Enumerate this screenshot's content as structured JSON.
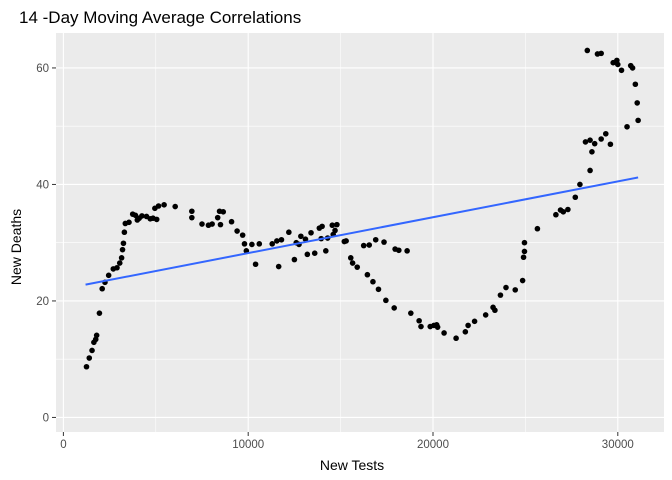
{
  "chart_data": {
    "type": "scatter",
    "title": "14 -Day Moving Average Correlations",
    "xlabel": "New Tests",
    "ylabel": "New Deaths",
    "xlim": [
      -400,
      32500
    ],
    "ylim": [
      -2.5,
      66
    ],
    "x_ticks": [
      0,
      10000,
      20000,
      30000
    ],
    "y_ticks": [
      0,
      20,
      40,
      60
    ],
    "x_tick_labels": [
      "0",
      "10000",
      "20000",
      "30000"
    ],
    "y_tick_labels": [
      "0",
      "20",
      "40",
      "60"
    ],
    "grid": true,
    "legend": "none",
    "colors": {
      "panel": "#ebebeb",
      "grid": "#ffffff",
      "points": "#000000",
      "trend": "#3366ff"
    },
    "trend_line": {
      "x": [
        1200,
        31100
      ],
      "y": [
        22.8,
        41.2
      ]
    },
    "points": [
      [
        1250,
        8.7
      ],
      [
        1400,
        10.2
      ],
      [
        1550,
        11.5
      ],
      [
        1650,
        12.9
      ],
      [
        1750,
        13.4
      ],
      [
        1800,
        14.1
      ],
      [
        1950,
        17.9
      ],
      [
        2100,
        22.1
      ],
      [
        2250,
        23.2
      ],
      [
        2450,
        24.4
      ],
      [
        2700,
        25.5
      ],
      [
        2900,
        25.7
      ],
      [
        3050,
        26.5
      ],
      [
        3150,
        27.4
      ],
      [
        3200,
        28.8
      ],
      [
        3250,
        29.9
      ],
      [
        3300,
        31.8
      ],
      [
        3350,
        33.3
      ],
      [
        3550,
        33.5
      ],
      [
        3750,
        34.9
      ],
      [
        3900,
        34.7
      ],
      [
        4000,
        33.9
      ],
      [
        4100,
        34.2
      ],
      [
        4250,
        34.6
      ],
      [
        4500,
        34.5
      ],
      [
        4700,
        34.1
      ],
      [
        4850,
        34.2
      ],
      [
        4950,
        35.9
      ],
      [
        5050,
        34.0
      ],
      [
        5150,
        36.3
      ],
      [
        5450,
        36.5
      ],
      [
        6050,
        36.2
      ],
      [
        6950,
        35.4
      ],
      [
        6950,
        34.3
      ],
      [
        7500,
        33.2
      ],
      [
        7850,
        33.0
      ],
      [
        8050,
        33.2
      ],
      [
        8350,
        34.3
      ],
      [
        8450,
        35.4
      ],
      [
        8500,
        33.1
      ],
      [
        8650,
        35.3
      ],
      [
        9100,
        33.6
      ],
      [
        9400,
        32.0
      ],
      [
        9700,
        31.3
      ],
      [
        9800,
        29.8
      ],
      [
        9900,
        28.6
      ],
      [
        10200,
        29.7
      ],
      [
        10400,
        26.3
      ],
      [
        10600,
        29.8
      ],
      [
        11300,
        29.8
      ],
      [
        11550,
        30.3
      ],
      [
        11650,
        25.9
      ],
      [
        11800,
        30.5
      ],
      [
        12200,
        31.8
      ],
      [
        12500,
        27.1
      ],
      [
        12600,
        30.0
      ],
      [
        12750,
        29.7
      ],
      [
        12850,
        31.1
      ],
      [
        13100,
        30.6
      ],
      [
        13200,
        28.0
      ],
      [
        13400,
        31.7
      ],
      [
        13600,
        28.2
      ],
      [
        13850,
        32.5
      ],
      [
        13950,
        30.7
      ],
      [
        14000,
        32.8
      ],
      [
        14200,
        28.6
      ],
      [
        14300,
        30.8
      ],
      [
        14550,
        33.0
      ],
      [
        14700,
        32.1
      ],
      [
        14800,
        33.1
      ],
      [
        14600,
        31.4
      ],
      [
        15200,
        30.2
      ],
      [
        15300,
        30.3
      ],
      [
        15550,
        27.4
      ],
      [
        15650,
        26.5
      ],
      [
        15900,
        25.8
      ],
      [
        16250,
        29.5
      ],
      [
        16450,
        24.5
      ],
      [
        16550,
        29.6
      ],
      [
        16750,
        23.3
      ],
      [
        16900,
        30.5
      ],
      [
        17050,
        22.0
      ],
      [
        17350,
        30.1
      ],
      [
        17450,
        20.1
      ],
      [
        17900,
        18.8
      ],
      [
        17950,
        28.9
      ],
      [
        18150,
        28.7
      ],
      [
        18600,
        28.6
      ],
      [
        18800,
        17.9
      ],
      [
        19250,
        16.6
      ],
      [
        19350,
        15.6
      ],
      [
        19850,
        15.6
      ],
      [
        20050,
        15.8
      ],
      [
        20200,
        15.9
      ],
      [
        20250,
        15.5
      ],
      [
        20600,
        14.5
      ],
      [
        21250,
        13.6
      ],
      [
        21750,
        14.7
      ],
      [
        21900,
        15.8
      ],
      [
        22250,
        16.5
      ],
      [
        22850,
        17.6
      ],
      [
        23250,
        18.9
      ],
      [
        23350,
        18.4
      ],
      [
        23650,
        21.0
      ],
      [
        23950,
        22.3
      ],
      [
        24450,
        21.9
      ],
      [
        24850,
        23.5
      ],
      [
        24900,
        27.5
      ],
      [
        24950,
        28.5
      ],
      [
        24950,
        30.0
      ],
      [
        25650,
        32.4
      ],
      [
        26650,
        34.8
      ],
      [
        26900,
        35.6
      ],
      [
        27050,
        35.3
      ],
      [
        27300,
        35.7
      ],
      [
        27700,
        37.8
      ],
      [
        27950,
        40.0
      ],
      [
        28250,
        47.3
      ],
      [
        28500,
        47.6
      ],
      [
        28500,
        42.4
      ],
      [
        28600,
        45.6
      ],
      [
        28750,
        47.0
      ],
      [
        28900,
        62.4
      ],
      [
        29100,
        62.5
      ],
      [
        29100,
        47.8
      ],
      [
        29350,
        48.7
      ],
      [
        29600,
        46.9
      ],
      [
        29750,
        60.9
      ],
      [
        29950,
        61.3
      ],
      [
        30000,
        60.6
      ],
      [
        30200,
        59.6
      ],
      [
        30500,
        49.9
      ],
      [
        30700,
        60.4
      ],
      [
        30800,
        60.0
      ],
      [
        30950,
        57.2
      ],
      [
        31050,
        54.0
      ],
      [
        31100,
        51.0
      ],
      [
        28350,
        63.0
      ]
    ]
  }
}
